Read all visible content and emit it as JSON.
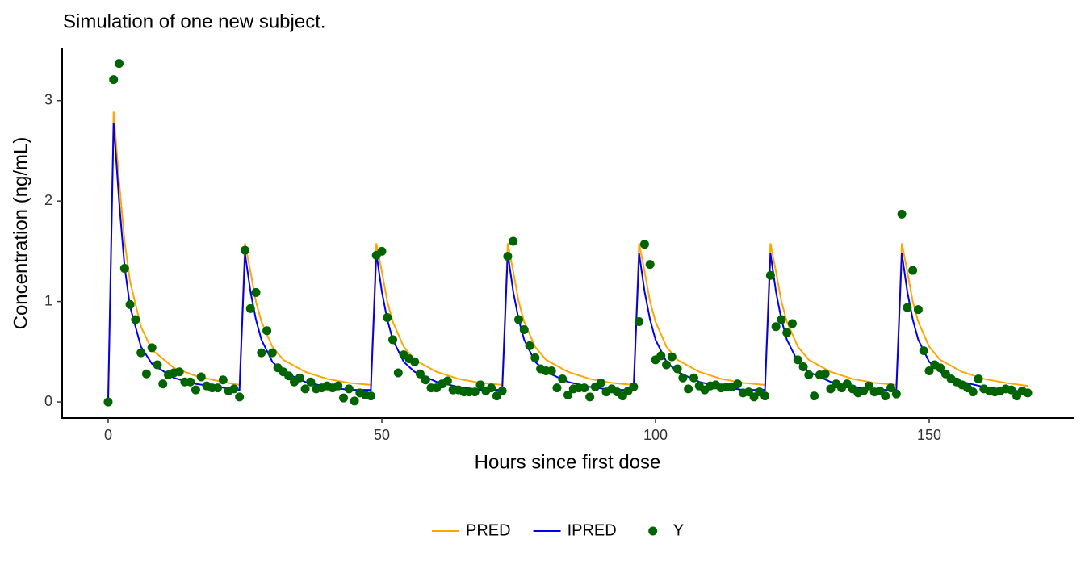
{
  "chart_data": {
    "type": "line",
    "title": "Simulation of one new subject.",
    "x_label": "Hours since first dose",
    "y_label": "Concentration (ng/mL)",
    "xlim": [
      -8.4,
      176.4
    ],
    "ylim": [
      -0.16,
      3.52
    ],
    "xticks": [
      0,
      50,
      100,
      150
    ],
    "yticks": [
      0,
      1,
      2,
      3
    ],
    "legend": "bottom",
    "series": [
      {
        "name": "PRED",
        "color": "#FFA500",
        "kind": "line",
        "x": [
          0,
          1,
          2,
          3,
          4,
          6,
          8,
          12,
          16,
          20,
          24,
          25,
          26,
          27,
          28,
          30,
          32,
          36,
          40,
          44,
          48,
          49,
          50,
          51,
          52,
          54,
          56,
          60,
          64,
          68,
          72,
          73,
          74,
          75,
          76,
          78,
          80,
          84,
          88,
          92,
          96,
          97,
          98,
          99,
          100,
          102,
          104,
          108,
          112,
          116,
          120,
          121,
          122,
          123,
          124,
          126,
          128,
          132,
          136,
          140,
          144,
          145,
          146,
          147,
          148,
          150,
          152,
          156,
          160,
          164,
          168
        ],
        "values": [
          0,
          2.89,
          2.2,
          1.6,
          1.2,
          0.75,
          0.52,
          0.34,
          0.26,
          0.21,
          0.17,
          1.58,
          1.3,
          1.0,
          0.8,
          0.55,
          0.42,
          0.3,
          0.23,
          0.19,
          0.17,
          1.58,
          1.3,
          1.0,
          0.8,
          0.55,
          0.42,
          0.3,
          0.23,
          0.19,
          0.17,
          1.58,
          1.3,
          1.0,
          0.8,
          0.55,
          0.42,
          0.3,
          0.23,
          0.19,
          0.17,
          1.58,
          1.3,
          1.0,
          0.8,
          0.55,
          0.42,
          0.3,
          0.23,
          0.19,
          0.17,
          1.58,
          1.3,
          1.0,
          0.8,
          0.55,
          0.42,
          0.3,
          0.23,
          0.19,
          0.17,
          1.58,
          1.3,
          1.0,
          0.8,
          0.55,
          0.42,
          0.3,
          0.23,
          0.19,
          0.16
        ]
      },
      {
        "name": "IPRED",
        "color": "#0000EE",
        "kind": "line",
        "x": [
          0,
          1,
          2,
          3,
          4,
          6,
          8,
          12,
          16,
          20,
          24,
          25,
          26,
          27,
          28,
          30,
          32,
          36,
          40,
          44,
          48,
          49,
          50,
          51,
          52,
          54,
          56,
          60,
          64,
          68,
          72,
          73,
          74,
          75,
          76,
          78,
          80,
          84,
          88,
          92,
          96,
          97,
          98,
          99,
          100,
          102,
          104,
          108,
          112,
          116,
          120,
          121,
          122,
          123,
          124,
          126,
          128,
          132,
          136,
          140,
          144,
          145,
          146,
          147,
          148,
          150,
          152,
          156,
          160,
          164,
          168
        ],
        "values": [
          0,
          2.78,
          2.0,
          1.35,
          0.95,
          0.55,
          0.38,
          0.24,
          0.18,
          0.15,
          0.12,
          1.48,
          1.1,
          0.82,
          0.62,
          0.4,
          0.3,
          0.2,
          0.15,
          0.12,
          0.12,
          1.48,
          1.1,
          0.82,
          0.62,
          0.4,
          0.3,
          0.2,
          0.15,
          0.12,
          0.12,
          1.48,
          1.1,
          0.82,
          0.62,
          0.4,
          0.3,
          0.2,
          0.15,
          0.12,
          0.12,
          1.48,
          1.1,
          0.82,
          0.62,
          0.4,
          0.3,
          0.2,
          0.15,
          0.12,
          0.12,
          1.48,
          1.1,
          0.82,
          0.62,
          0.4,
          0.3,
          0.2,
          0.15,
          0.12,
          0.12,
          1.48,
          1.1,
          0.82,
          0.62,
          0.4,
          0.3,
          0.2,
          0.15,
          0.12,
          0.1
        ]
      },
      {
        "name": "Y",
        "color": "#006400",
        "kind": "point",
        "x": [
          0,
          1,
          2,
          3,
          4,
          5,
          6,
          7,
          8,
          9,
          10,
          11,
          12,
          13,
          14,
          15,
          16,
          17,
          18,
          19,
          20,
          21,
          22,
          23,
          24,
          25,
          26,
          27,
          28,
          29,
          30,
          31,
          32,
          33,
          34,
          35,
          36,
          37,
          38,
          39,
          40,
          41,
          42,
          43,
          44,
          45,
          46,
          47,
          48,
          49,
          50,
          51,
          52,
          53,
          54,
          55,
          56,
          57,
          58,
          59,
          60,
          61,
          62,
          63,
          64,
          65,
          66,
          67,
          68,
          69,
          70,
          71,
          72,
          73,
          74,
          75,
          76,
          77,
          78,
          79,
          80,
          81,
          82,
          83,
          84,
          85,
          86,
          87,
          88,
          89,
          90,
          91,
          92,
          93,
          94,
          95,
          96,
          97,
          98,
          99,
          100,
          101,
          102,
          103,
          104,
          105,
          106,
          107,
          108,
          109,
          110,
          111,
          112,
          113,
          114,
          115,
          116,
          117,
          118,
          119,
          120,
          121,
          122,
          123,
          124,
          125,
          126,
          127,
          128,
          129,
          130,
          131,
          132,
          133,
          134,
          135,
          136,
          137,
          138,
          139,
          140,
          141,
          142,
          143,
          144,
          145,
          146,
          147,
          148,
          149,
          150,
          151,
          152,
          153,
          154,
          155,
          156,
          157,
          158,
          159,
          160,
          161,
          162,
          163,
          164,
          165,
          166,
          167,
          168
        ],
        "values": [
          0,
          3.21,
          3.37,
          1.33,
          0.97,
          0.82,
          0.49,
          0.28,
          0.54,
          0.37,
          0.18,
          0.27,
          0.29,
          0.3,
          0.2,
          0.2,
          0.12,
          0.25,
          0.16,
          0.14,
          0.14,
          0.22,
          0.11,
          0.13,
          0.05,
          1.51,
          0.93,
          1.09,
          0.49,
          0.71,
          0.49,
          0.34,
          0.3,
          0.26,
          0.2,
          0.24,
          0.13,
          0.2,
          0.13,
          0.14,
          0.16,
          0.14,
          0.16,
          0.04,
          0.13,
          0.01,
          0.09,
          0.07,
          0.06,
          1.46,
          1.5,
          0.84,
          0.62,
          0.29,
          0.47,
          0.43,
          0.4,
          0.28,
          0.22,
          0.14,
          0.14,
          0.18,
          0.21,
          0.12,
          0.12,
          0.1,
          0.1,
          0.1,
          0.17,
          0.11,
          0.14,
          0.06,
          0.11,
          1.45,
          1.6,
          0.82,
          0.72,
          0.56,
          0.44,
          0.33,
          0.31,
          0.31,
          0.14,
          0.23,
          0.07,
          0.13,
          0.14,
          0.14,
          0.05,
          0.15,
          0.19,
          0.1,
          0.13,
          0.1,
          0.06,
          0.11,
          0.15,
          0.8,
          1.57,
          1.37,
          0.42,
          0.46,
          0.37,
          0.45,
          0.33,
          0.24,
          0.13,
          0.24,
          0.16,
          0.12,
          0.16,
          0.17,
          0.14,
          0.15,
          0.15,
          0.18,
          0.09,
          0.1,
          0.05,
          0.1,
          0.06,
          1.26,
          0.75,
          0.82,
          0.69,
          0.78,
          0.42,
          0.35,
          0.27,
          0.06,
          0.27,
          0.28,
          0.13,
          0.18,
          0.14,
          0.18,
          0.13,
          0.09,
          0.11,
          0.16,
          0.1,
          0.11,
          0.06,
          0.14,
          0.08,
          1.87,
          0.94,
          1.31,
          0.92,
          0.51,
          0.31,
          0.37,
          0.34,
          0.28,
          0.23,
          0.2,
          0.17,
          0.14,
          0.1,
          0.23,
          0.13,
          0.11,
          0.1,
          0.11,
          0.13,
          0.12,
          0.06,
          0.11,
          0.09
        ]
      }
    ]
  }
}
